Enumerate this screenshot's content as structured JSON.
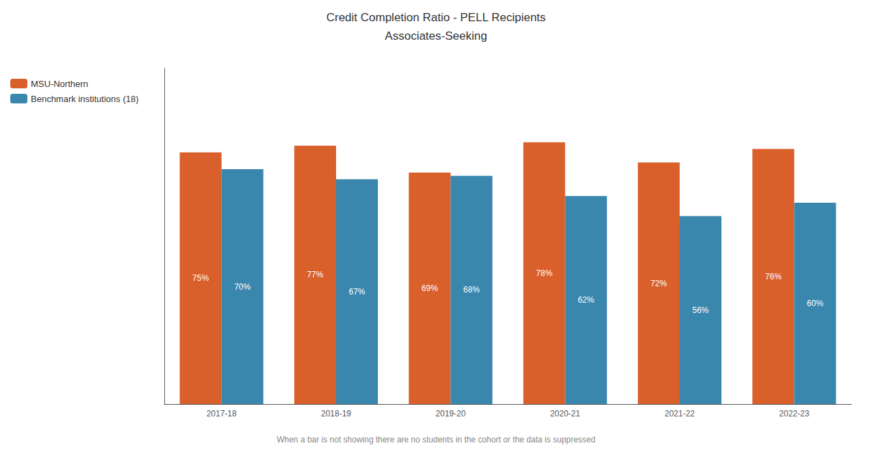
{
  "chart_data": {
    "type": "bar",
    "title": "Credit Completion Ratio - PELL Recipients",
    "subtitle": "Associates-Seeking",
    "categories": [
      "2017-18",
      "2018-19",
      "2019-20",
      "2020-21",
      "2021-22",
      "2022-23"
    ],
    "series": [
      {
        "name": "MSU-Northern",
        "color": "#D95F2B",
        "values": [
          75,
          77,
          69,
          78,
          72,
          76
        ],
        "value_labels": [
          "75%",
          "77%",
          "69%",
          "78%",
          "72%",
          "76%"
        ]
      },
      {
        "name": "Benchmark institutions (18)",
        "color": "#3A87AD",
        "values": [
          70,
          67,
          68,
          62,
          56,
          60
        ],
        "value_labels": [
          "70%",
          "67%",
          "68%",
          "62%",
          "56%",
          "60%"
        ]
      }
    ],
    "ylim": [
      0,
      100
    ],
    "yticks": [],
    "grid": false,
    "legend": "upper left",
    "tick_labels": "x",
    "data_labels": true,
    "annotations": [
      "When a bar is not showing there are no students in the cohort or the data is suppressed"
    ]
  }
}
